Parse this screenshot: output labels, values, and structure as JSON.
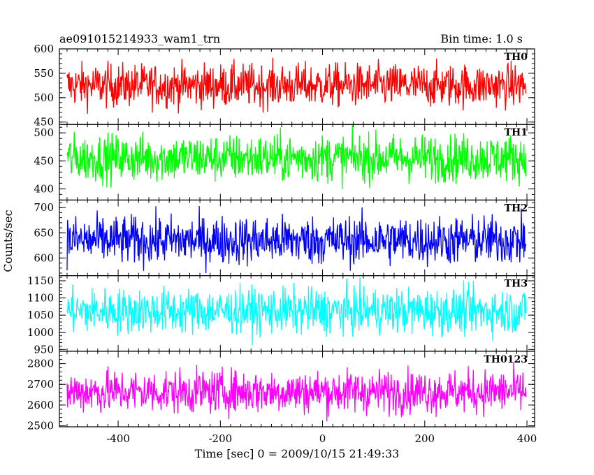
{
  "header": {
    "title": "ae091015214933_wam1_trn",
    "bin_time": "Bin time: 1.0 s"
  },
  "chart_data": {
    "type": "line",
    "xlabel": "Time [sec] 0 = 2009/10/15 21:49:33",
    "ylabel": "Counts/sec",
    "xlim": [
      -515,
      415
    ],
    "xticks": [
      -400,
      -200,
      0,
      200,
      400
    ],
    "bin_time_s": 1.0,
    "panels": [
      {
        "name": "TH0",
        "color": "#ff0000",
        "ylim": [
          445,
          600
        ],
        "yticks": [
          450,
          500,
          550,
          600
        ],
        "mean": 525,
        "spread": 22,
        "n_points": 900
      },
      {
        "name": "TH1",
        "color": "#00ff00",
        "ylim": [
          380,
          515
        ],
        "yticks": [
          400,
          450,
          500
        ],
        "mean": 455,
        "spread": 21,
        "n_points": 900
      },
      {
        "name": "TH2",
        "color": "#0000ff",
        "ylim": [
          565,
          715
        ],
        "yticks": [
          600,
          650,
          700
        ],
        "mean": 635,
        "spread": 24,
        "n_points": 900
      },
      {
        "name": "TH3",
        "color": "#00ffff",
        "ylim": [
          945,
          1165
        ],
        "yticks": [
          950,
          1000,
          1050,
          1100,
          1150
        ],
        "mean": 1062,
        "spread": 33,
        "n_points": 900
      },
      {
        "name": "TH0123",
        "color": "#ff00ff",
        "ylim": [
          2495,
          2860
        ],
        "yticks": [
          2500,
          2600,
          2700,
          2800
        ],
        "mean": 2665,
        "spread": 52,
        "n_points": 900
      }
    ]
  }
}
